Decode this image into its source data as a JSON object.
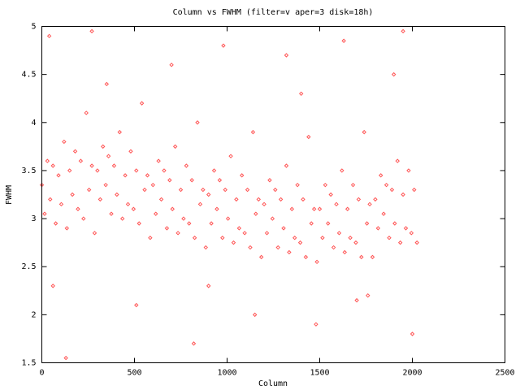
{
  "chart_data": {
    "type": "scatter",
    "title": "Column vs FWHM (filter=v aper=3 disk=18h)",
    "x_label": "Column",
    "y_label": "FWHM",
    "color": "#ff5555",
    "xlim": [
      0,
      2500
    ],
    "xticks": [
      0,
      500,
      1000,
      1500,
      2000,
      2500
    ],
    "ylim": [
      1.5,
      5
    ],
    "yticks": [
      1.5,
      2,
      2.5,
      3,
      3.5,
      4,
      4.5,
      5
    ],
    "x": [
      0,
      15,
      30,
      45,
      60,
      75,
      90,
      105,
      120,
      135,
      150,
      165,
      180,
      195,
      210,
      225,
      240,
      255,
      270,
      285,
      300,
      315,
      330,
      345,
      360,
      375,
      390,
      405,
      420,
      435,
      450,
      465,
      480,
      495,
      510,
      525,
      540,
      555,
      570,
      585,
      600,
      615,
      630,
      645,
      660,
      675,
      690,
      705,
      720,
      735,
      750,
      765,
      780,
      795,
      810,
      825,
      840,
      855,
      870,
      885,
      900,
      915,
      930,
      945,
      960,
      975,
      990,
      1005,
      1020,
      1035,
      1050,
      1065,
      1080,
      1095,
      1110,
      1125,
      1140,
      1155,
      1170,
      1185,
      1200,
      1215,
      1230,
      1245,
      1260,
      1275,
      1290,
      1305,
      1320,
      1335,
      1350,
      1365,
      1380,
      1395,
      1410,
      1425,
      1440,
      1455,
      1470,
      1485,
      1500,
      1515,
      1530,
      1545,
      1560,
      1575,
      1590,
      1605,
      1620,
      1635,
      1650,
      1665,
      1680,
      1695,
      1710,
      1725,
      1740,
      1755,
      1770,
      1785,
      1800,
      1815,
      1830,
      1845,
      1860,
      1875,
      1890,
      1905,
      1920,
      1935,
      1950,
      1965,
      1980,
      1995,
      2010,
      2025,
      40,
      130,
      270,
      510,
      700,
      820,
      980,
      1150,
      1320,
      1480,
      1630,
      1760,
      1900,
      2000,
      60,
      350,
      900,
      1400,
      1700,
      1950
    ],
    "y": [
      3.35,
      3.05,
      3.6,
      3.2,
      3.55,
      2.95,
      3.45,
      3.15,
      3.8,
      2.9,
      3.5,
      3.25,
      3.7,
      3.1,
      3.6,
      3.0,
      4.1,
      3.3,
      3.55,
      2.85,
      3.5,
      3.2,
      3.75,
      3.35,
      3.65,
      3.05,
      3.55,
      3.25,
      3.9,
      3.0,
      3.45,
      3.15,
      3.7,
      3.1,
      3.5,
      2.95,
      4.2,
      3.3,
      3.45,
      2.8,
      3.35,
      3.05,
      3.6,
      3.2,
      3.5,
      2.9,
      3.4,
      3.1,
      3.75,
      2.85,
      3.3,
      3.0,
      3.55,
      2.95,
      3.4,
      2.8,
      4.0,
      3.15,
      3.3,
      2.7,
      3.25,
      2.95,
      3.5,
      3.1,
      3.4,
      2.8,
      3.3,
      3.0,
      3.65,
      2.75,
      3.2,
      2.9,
      3.45,
      2.85,
      3.3,
      2.7,
      3.9,
      3.05,
      3.2,
      2.6,
      3.15,
      2.85,
      3.4,
      3.0,
      3.3,
      2.7,
      3.2,
      2.9,
      3.55,
      2.65,
      3.1,
      2.8,
      3.35,
      2.75,
      3.2,
      2.6,
      3.85,
      2.95,
      3.1,
      2.55,
      3.1,
      2.8,
      3.35,
      2.95,
      3.25,
      2.7,
      3.15,
      2.85,
      3.5,
      2.65,
      3.1,
      2.8,
      3.35,
      2.75,
      3.2,
      2.6,
      3.9,
      2.95,
      3.15,
      2.6,
      3.2,
      2.9,
      3.45,
      3.05,
      3.35,
      2.8,
      3.3,
      2.95,
      3.6,
      2.75,
      3.25,
      2.9,
      3.5,
      2.85,
      3.3,
      2.75,
      4.9,
      1.55,
      4.95,
      2.1,
      4.6,
      1.7,
      4.8,
      2.0,
      4.7,
      1.9,
      4.85,
      2.2,
      4.5,
      1.8,
      2.3,
      4.4,
      2.3,
      4.3,
      2.15,
      4.95
    ]
  }
}
